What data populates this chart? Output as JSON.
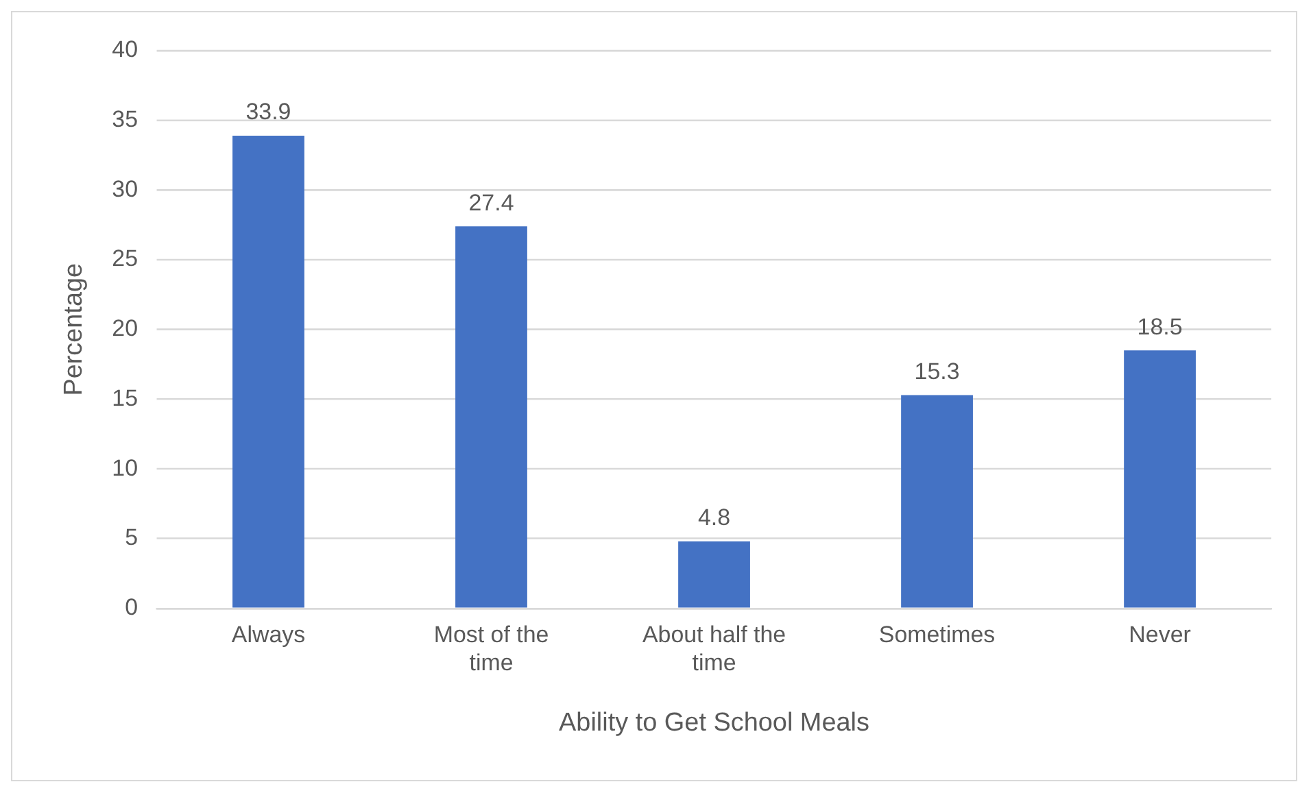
{
  "chart_data": {
    "type": "bar",
    "xlabel": "Ability to Get School Meals",
    "ylabel": "Percentage",
    "categories": [
      "Always",
      "Most of the time",
      "About half the time",
      "Sometimes",
      "Never"
    ],
    "values": [
      33.9,
      27.4,
      4.8,
      15.3,
      18.5
    ],
    "color": "#4472c4",
    "ylim": [
      0,
      40
    ],
    "yticks": [
      0,
      5,
      10,
      15,
      20,
      25,
      30,
      35,
      40
    ],
    "grid": "y",
    "data_labels": true,
    "legend": false
  }
}
